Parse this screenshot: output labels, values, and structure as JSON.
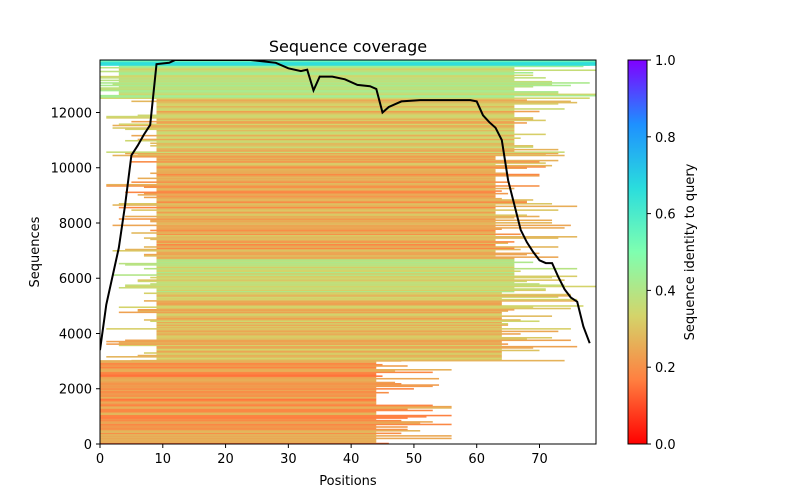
{
  "chart_data": {
    "type": "heatmap",
    "title": "Sequence coverage",
    "xlabel": "Positions",
    "ylabel": "Sequences",
    "xlim": [
      0,
      79
    ],
    "ylim": [
      0,
      13900
    ],
    "xticks": [
      0,
      10,
      20,
      30,
      40,
      50,
      60,
      70
    ],
    "yticks": [
      0,
      2000,
      4000,
      6000,
      8000,
      10000,
      12000
    ],
    "grid": false,
    "colorbar": {
      "label": "Sequence identity to query",
      "colormap": "rainbow",
      "range": [
        0.0,
        1.0
      ],
      "ticks": [
        "0.0",
        "0.2",
        "0.4",
        "0.6",
        "0.8",
        "1.0"
      ],
      "stops": [
        "#ff0000",
        "#ff7f40",
        "#d4d46a",
        "#7fffb0",
        "#2adddd",
        "#1e90ff",
        "#8000ff"
      ]
    },
    "coverage_line": {
      "name": "coverage",
      "color": "#000000",
      "x": [
        0,
        1,
        3,
        4,
        5,
        6,
        7,
        8,
        9,
        11,
        12,
        24,
        26,
        28,
        30,
        32,
        33,
        34,
        35,
        37,
        39,
        41,
        43,
        44,
        45,
        46,
        48,
        51,
        59,
        60,
        61,
        62,
        63,
        64,
        65,
        66,
        67,
        68,
        69,
        70,
        71,
        72,
        73,
        74,
        75,
        76,
        77,
        78
      ],
      "y": [
        3400,
        5050,
        7100,
        8650,
        10450,
        10800,
        11200,
        11550,
        13750,
        13800,
        13900,
        13900,
        13850,
        13800,
        13600,
        13500,
        13550,
        12800,
        13300,
        13300,
        13200,
        13000,
        12950,
        12850,
        12000,
        12200,
        12400,
        12450,
        12450,
        12400,
        11900,
        11650,
        11450,
        11000,
        9550,
        8650,
        7750,
        7300,
        6950,
        6650,
        6550,
        6550,
        6050,
        5600,
        5300,
        5150,
        4250,
        3650
      ]
    },
    "identity_bands": [
      {
        "y_from": 0,
        "y_to": 3000,
        "identity": 0.22,
        "start": 0,
        "end": 44
      },
      {
        "y_from": 3000,
        "y_to": 5500,
        "identity": 0.28,
        "start": 9,
        "end": 64
      },
      {
        "y_from": 5500,
        "y_to": 6700,
        "identity": 0.36,
        "start": 9,
        "end": 66
      },
      {
        "y_from": 6700,
        "y_to": 10500,
        "identity": 0.25,
        "start": 9,
        "end": 63
      },
      {
        "y_from": 10500,
        "y_to": 12500,
        "identity": 0.3,
        "start": 9,
        "end": 66
      },
      {
        "y_from": 12500,
        "y_to": 13700,
        "identity": 0.38,
        "start": 3,
        "end": 66
      },
      {
        "y_from": 13700,
        "y_to": 13900,
        "identity": 0.62,
        "start": 0,
        "end": 79
      }
    ]
  }
}
